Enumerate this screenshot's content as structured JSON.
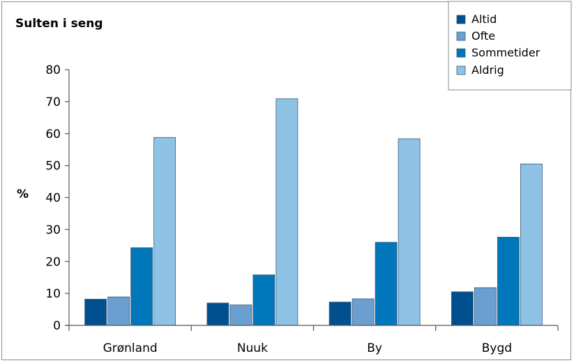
{
  "chart_data": {
    "type": "bar",
    "title": "Sulten i seng",
    "ylabel": "%",
    "xlabel": "",
    "ylim": [
      0,
      80
    ],
    "yticks": [
      0,
      10,
      20,
      30,
      40,
      50,
      60,
      70,
      80
    ],
    "categories": [
      "Grønland",
      "Nuuk",
      "By",
      "Bygd"
    ],
    "legend_position": "top-right",
    "grid": false,
    "series": [
      {
        "name": "Altid",
        "color": "#00508f",
        "values": [
          8.2,
          7.0,
          7.3,
          10.5
        ]
      },
      {
        "name": "Ofte",
        "color": "#6a9fd0",
        "values": [
          8.9,
          6.4,
          8.3,
          11.8
        ]
      },
      {
        "name": "Sommetider",
        "color": "#0077bb",
        "values": [
          24.3,
          15.8,
          26.0,
          27.6
        ]
      },
      {
        "name": "Aldrig",
        "color": "#8ec3e6",
        "values": [
          58.8,
          70.9,
          58.4,
          50.5
        ]
      }
    ]
  }
}
